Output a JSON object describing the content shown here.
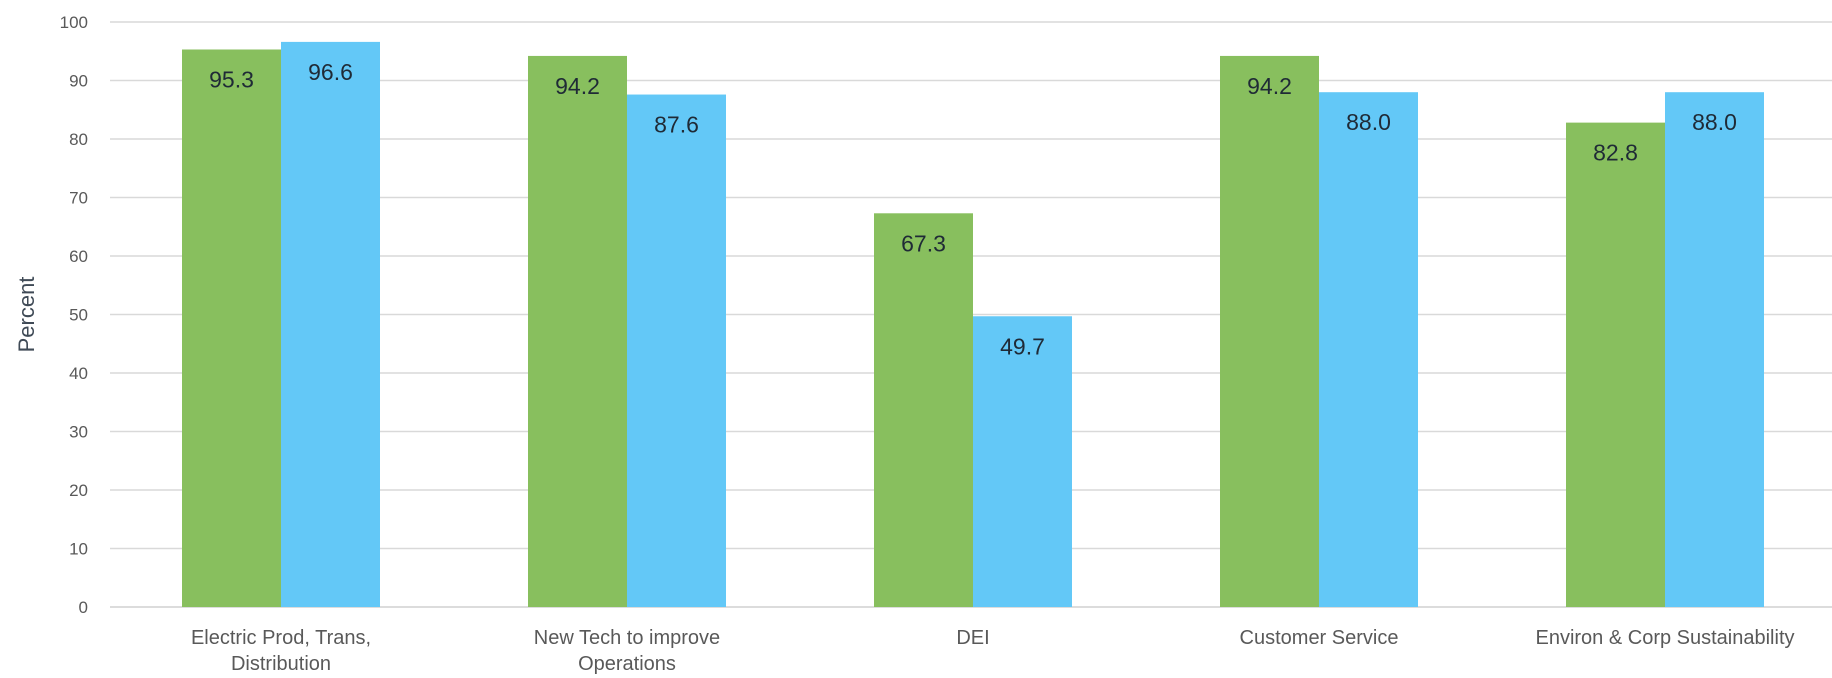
{
  "chart_data": {
    "type": "bar",
    "title": "",
    "xlabel": "",
    "ylabel": "Percent",
    "ylim": [
      0,
      100
    ],
    "yticks": [
      0,
      10,
      20,
      30,
      40,
      50,
      60,
      70,
      80,
      90,
      100
    ],
    "grid": true,
    "legend": "none",
    "categories": [
      [
        "Electric Prod, Trans,",
        "Distribution"
      ],
      [
        "New Tech to improve",
        "Operations"
      ],
      [
        "DEI"
      ],
      [
        "Customer Service"
      ],
      [
        "Environ & Corp Sustainability"
      ]
    ],
    "series": [
      {
        "color": "#88bf5e",
        "values": [
          95.3,
          94.2,
          67.3,
          94.2,
          82.8
        ]
      },
      {
        "color": "#63c8f7",
        "values": [
          96.6,
          87.6,
          49.7,
          88.0,
          88.0
        ]
      }
    ],
    "colors": {
      "grid": "#d9d9d9",
      "axis": "#d0d0d0"
    }
  }
}
